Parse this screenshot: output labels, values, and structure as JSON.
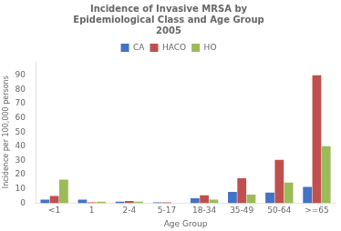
{
  "chart_data": {
    "type": "bar",
    "title": "Incidence of Invasive MRSA by\nEpidemiological Class and Age Group\n2005",
    "xlabel": "Age Group",
    "ylabel": "Incidence per 100,000 persons",
    "categories": [
      "<1",
      "1",
      "2-4",
      "5-17",
      "18-34",
      "35-49",
      "50-64",
      ">=65"
    ],
    "series": [
      {
        "name": "CA",
        "color": "#4472C4",
        "values": [
          2.5,
          2.5,
          1.0,
          0.5,
          3.5,
          8.0,
          7.5,
          11.5
        ]
      },
      {
        "name": "HACO",
        "color": "#C0504D",
        "values": [
          5.0,
          0.5,
          1.5,
          0.5,
          5.5,
          17.5,
          30.5,
          90.0
        ]
      },
      {
        "name": "HO",
        "color": "#9BBB59",
        "values": [
          16.5,
          1.0,
          1.0,
          0.0,
          2.5,
          6.0,
          14.5,
          40.0
        ]
      }
    ],
    "ylim": [
      0,
      100
    ],
    "yticks": [
      0,
      10,
      20,
      30,
      40,
      50,
      60,
      70,
      80,
      90
    ],
    "grid": false,
    "legend": "upper center"
  }
}
